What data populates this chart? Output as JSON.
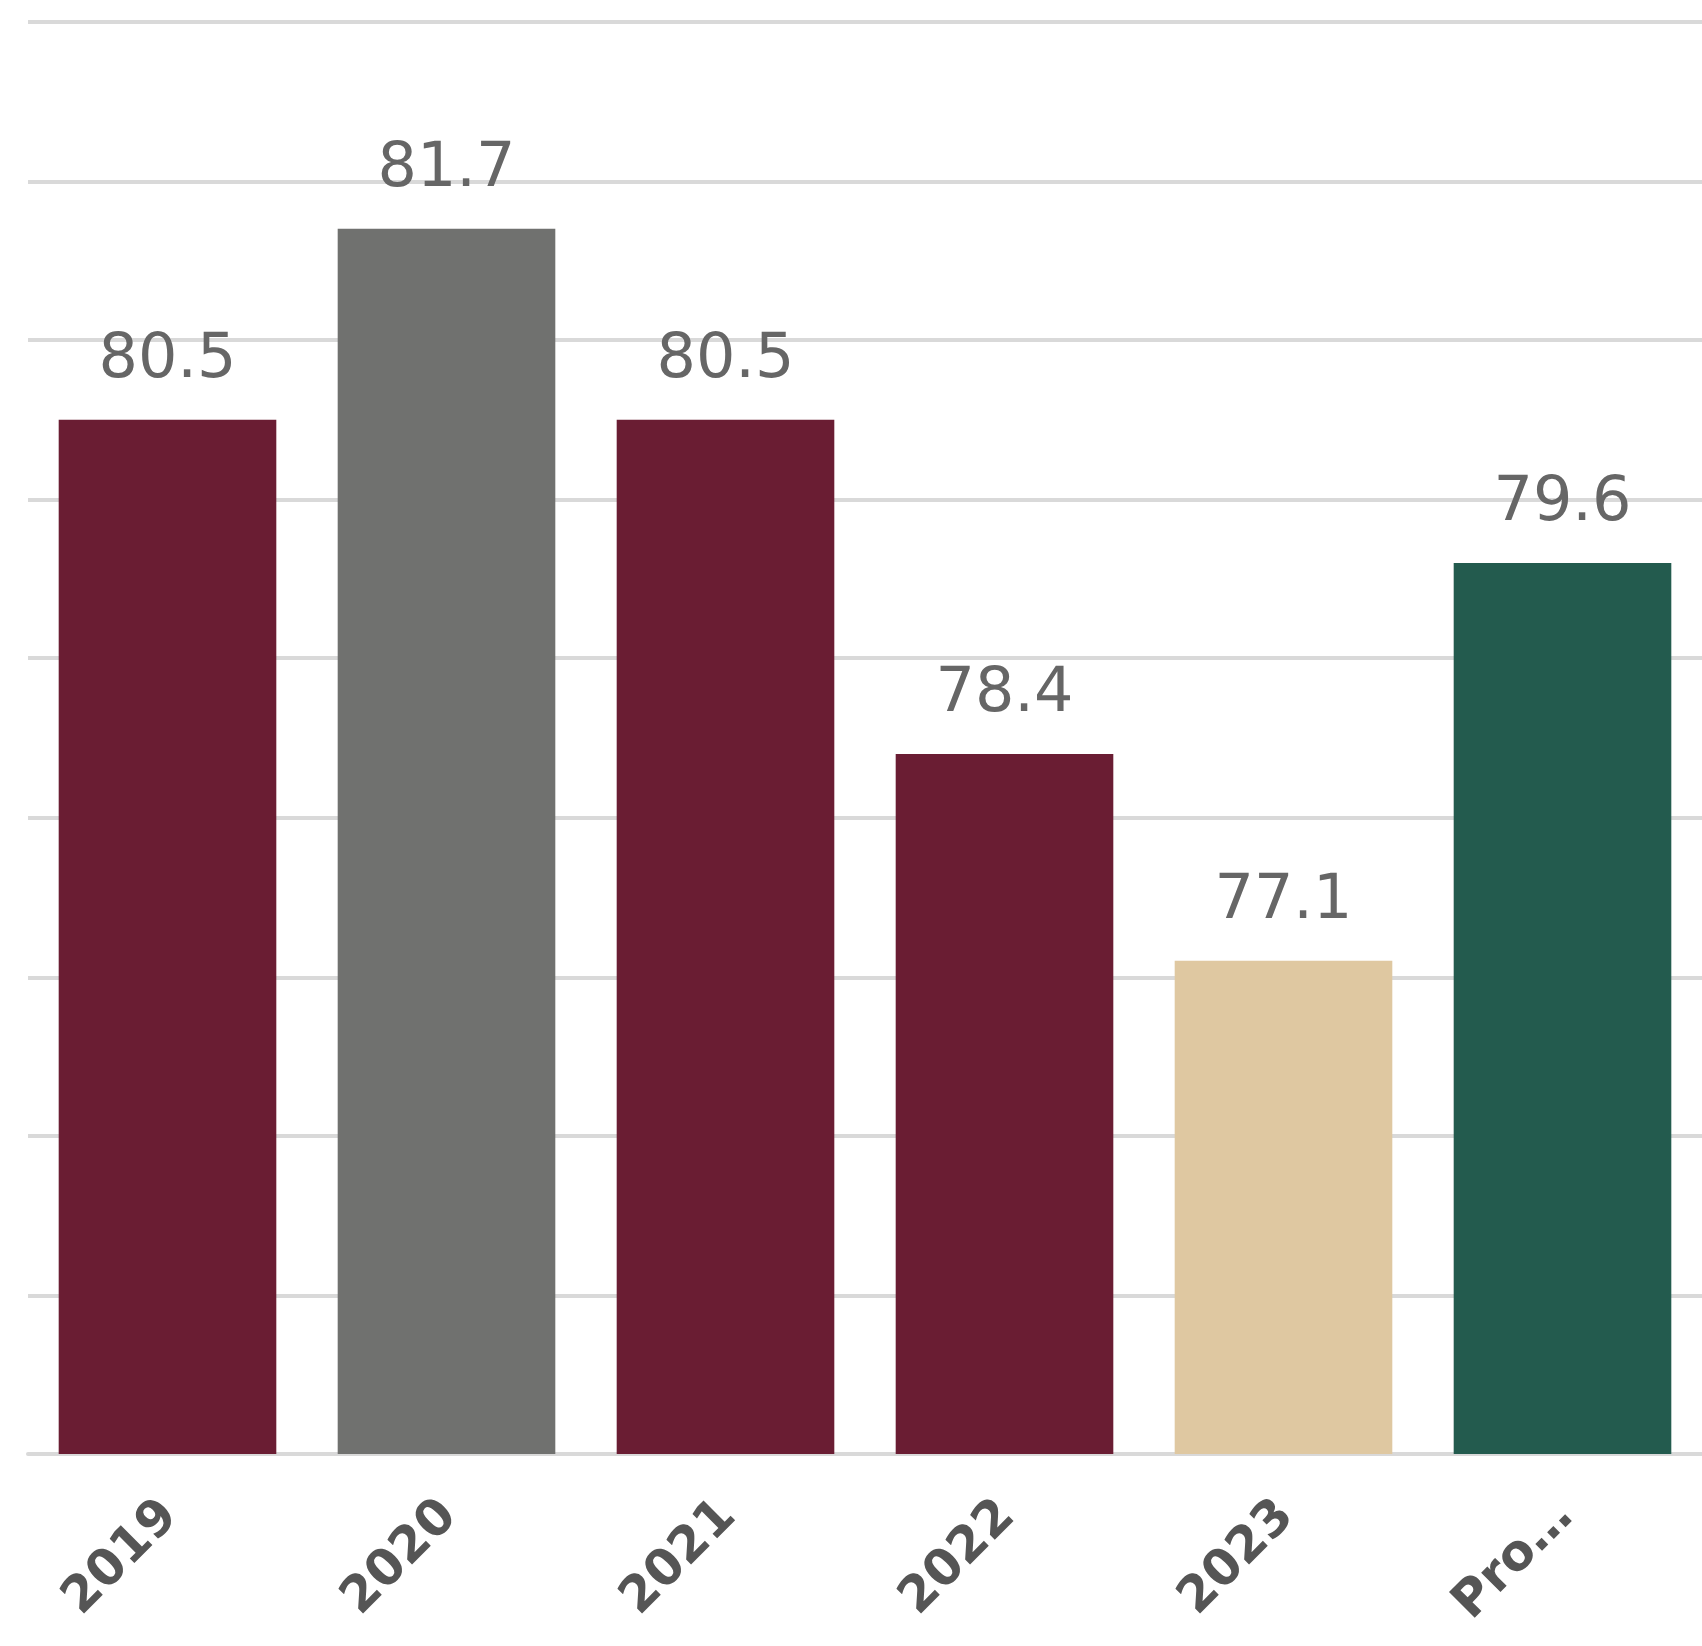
{
  "chart_data": {
    "type": "bar",
    "categories": [
      "2019",
      "2020",
      "2021",
      "2022",
      "2023",
      "Pro…"
    ],
    "values": [
      80.5,
      81.7,
      80.5,
      78.4,
      77.1,
      79.6
    ],
    "colors": [
      "#6a1d33",
      "#70716f",
      "#6a1d33",
      "#6a1d33",
      "#dfc8a1",
      "#235b4e"
    ],
    "ylim": [
      74,
      83
    ],
    "yticks": [
      {
        "value": 74,
        "label": null
      },
      {
        "value": 75,
        "label": null
      },
      {
        "value": 76,
        "label": null
      },
      {
        "value": 77,
        "label": null
      },
      {
        "value": 78,
        "label": null
      },
      {
        "value": 79,
        "label": null
      },
      {
        "value": 80,
        "label": null
      },
      {
        "value": 81,
        "label": null
      },
      {
        "value": 82,
        "label": null
      },
      {
        "value": 83,
        "label": null
      }
    ],
    "tick_labels": "x",
    "grid": "y",
    "data_labels": true
  }
}
